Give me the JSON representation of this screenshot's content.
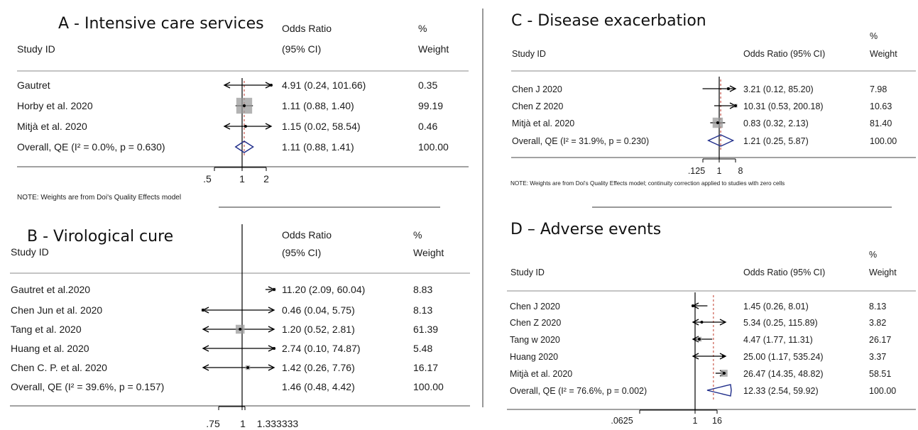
{
  "chart_data": [
    {
      "type": "forest",
      "title": "A - Intensive care services",
      "header": {
        "study": "Study ID",
        "or_line1": "Odds Ratio",
        "or_line2": "(95% CI)",
        "w_line1": "%",
        "w_line2": "Weight"
      },
      "studies": [
        {
          "name": "Gautret",
          "or": 4.91,
          "lo": 0.24,
          "hi": 101.66,
          "ci_text": "4.91 (0.24, 101.66)",
          "weight": "0.35"
        },
        {
          "name": "Horby et al. 2020",
          "or": 1.11,
          "lo": 0.88,
          "hi": 1.4,
          "ci_text": "1.11 (0.88, 1.40)",
          "weight": "99.19"
        },
        {
          "name": "Mitjà et al. 2020",
          "or": 1.15,
          "lo": 0.02,
          "hi": 58.54,
          "ci_text": "1.15 (0.02, 58.54)",
          "weight": "0.46"
        }
      ],
      "overall": {
        "label": "Overall, QE (I² = 0.0%, p = 0.630)",
        "or": 1.11,
        "lo": 0.88,
        "hi": 1.41,
        "ci_text": "1.11 (0.88, 1.41)",
        "weight": "100.00"
      },
      "xaxis": {
        "scale": "log",
        "range": [
          0.4,
          2.5
        ],
        "ticks": [
          ".5",
          "1",
          "2"
        ],
        "tick_values": [
          0.5,
          1,
          2
        ]
      },
      "note": "NOTE: Weights are from Doi's Quality Effects model"
    },
    {
      "type": "forest",
      "title": "B - Virological cure",
      "header": {
        "study": "Study ID",
        "or_line1": "Odds Ratio",
        "or_line2": "(95% CI)",
        "w_line1": "%",
        "w_line2": "Weight"
      },
      "studies": [
        {
          "name": "Gautret et al.2020",
          "or": 11.2,
          "lo": 2.09,
          "hi": 60.04,
          "ci_text": "11.20 (2.09, 60.04)",
          "weight": "8.83"
        },
        {
          "name": "Chen Jun et al. 2020",
          "or": 0.46,
          "lo": 0.04,
          "hi": 5.75,
          "ci_text": "0.46 (0.04, 5.75)",
          "weight": "8.13"
        },
        {
          "name": "Tang et al. 2020",
          "or": 1.2,
          "lo": 0.52,
          "hi": 2.81,
          "ci_text": "1.20 (0.52, 2.81)",
          "weight": "61.39"
        },
        {
          "name": "Huang et al. 2020",
          "or": 2.74,
          "lo": 0.1,
          "hi": 74.87,
          "ci_text": "2.74 (0.10, 74.87)",
          "weight": "5.48"
        },
        {
          "name": "Chen C. P. et al. 2020",
          "or": 1.42,
          "lo": 0.26,
          "hi": 7.76,
          "ci_text": "1.42 (0.26, 7.76)",
          "weight": "16.17"
        }
      ],
      "overall": {
        "label": "Overall, QE (I² = 39.6%, p = 0.157)",
        "or": 1.46,
        "lo": 0.48,
        "hi": 4.42,
        "ci_text": "1.46 (0.48, 4.42)",
        "weight": "100.00"
      },
      "xaxis": {
        "scale": "log",
        "range": [
          0.7,
          1.5
        ],
        "ticks": [
          ".75",
          "1",
          "1.333333"
        ],
        "tick_values": [
          0.75,
          1,
          1.333333
        ]
      },
      "note": ""
    },
    {
      "type": "forest",
      "title": "C - Disease exacerbation",
      "header": {
        "study": "Study ID",
        "or_line1": "Odds Ratio (95% CI)",
        "or_line2": "",
        "w_line1": "%",
        "w_line2": "Weight"
      },
      "studies": [
        {
          "name": "Chen J 2020",
          "or": 3.21,
          "lo": 0.12,
          "hi": 85.2,
          "ci_text": "3.21 (0.12, 85.20)",
          "weight": "7.98"
        },
        {
          "name": "Chen Z 2020",
          "or": 10.31,
          "lo": 0.53,
          "hi": 200.18,
          "ci_text": "10.31 (0.53, 200.18)",
          "weight": "10.63"
        },
        {
          "name": "Mitjà et al. 2020",
          "or": 0.83,
          "lo": 0.32,
          "hi": 2.13,
          "ci_text": "0.83 (0.32, 2.13)",
          "weight": "81.40"
        }
      ],
      "overall": {
        "label": "Overall, QE (I² = 31.9%, p = 0.230)",
        "or": 1.21,
        "lo": 0.25,
        "hi": 5.87,
        "ci_text": "1.21 (0.25, 5.87)",
        "weight": "100.00"
      },
      "xaxis": {
        "scale": "log",
        "range": [
          0.1,
          10
        ],
        "ticks": [
          ".125",
          "1",
          "8"
        ],
        "tick_values": [
          0.125,
          1,
          8
        ]
      },
      "note": "NOTE: Weights are from Doi's Quality Effects model; continuity correction applied to studies with zero cells"
    },
    {
      "type": "forest",
      "title": "D – Adverse events",
      "header": {
        "study": "Study ID",
        "or_line1": "Odds Ratio (95% CI)",
        "or_line2": "",
        "w_line1": "%",
        "w_line2": "Weight"
      },
      "studies": [
        {
          "name": "Chen J 2020",
          "or": 1.45,
          "lo": 0.26,
          "hi": 8.01,
          "ci_text": "1.45 (0.26, 8.01)",
          "weight": "8.13"
        },
        {
          "name": "Chen Z 2020",
          "or": 5.34,
          "lo": 0.25,
          "hi": 115.89,
          "ci_text": "5.34 (0.25, 115.89)",
          "weight": "3.82"
        },
        {
          "name": "Tang w 2020",
          "or": 4.47,
          "lo": 1.77,
          "hi": 11.31,
          "ci_text": "4.47 (1.77, 11.31)",
          "weight": "26.17"
        },
        {
          "name": "Huang 2020",
          "or": 25.0,
          "lo": 1.17,
          "hi": 535.24,
          "ci_text": "25.00 (1.17, 535.24)",
          "weight": "3.37"
        },
        {
          "name": "Mitjà et al. 2020",
          "or": 26.47,
          "lo": 14.35,
          "hi": 48.82,
          "ci_text": "26.47 (14.35, 48.82)",
          "weight": "58.51"
        }
      ],
      "overall": {
        "label": "Overall, QE (I² = 76.6%, p = 0.002)",
        "or": 12.33,
        "lo": 2.54,
        "hi": 59.92,
        "ci_text": "12.33 (2.54, 59.92)",
        "weight": "100.00"
      },
      "xaxis": {
        "scale": "log",
        "range": [
          0.8,
          20
        ],
        "ticks": [
          ".0625",
          "1",
          "16"
        ],
        "tick_values": [
          0.0625,
          1,
          16
        ]
      },
      "note": ""
    }
  ]
}
